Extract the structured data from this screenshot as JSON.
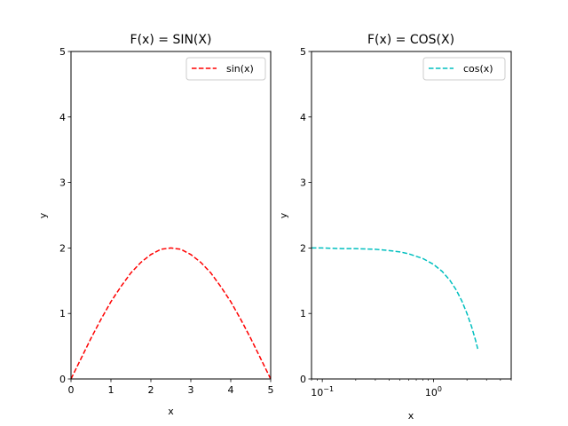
{
  "chart_data": [
    {
      "type": "line",
      "title": "F(x) = SIN(X)",
      "xlabel": "x",
      "ylabel": "y",
      "xscale": "linear",
      "xlim": [
        0,
        5
      ],
      "ylim": [
        0,
        5
      ],
      "xticks": [
        0,
        1,
        2,
        3,
        4,
        5
      ],
      "xtick_labels": [
        "0",
        "1",
        "2",
        "3",
        "4",
        "5"
      ],
      "yticks": [
        0,
        1,
        2,
        3,
        4,
        5
      ],
      "ytick_labels": [
        "0",
        "1",
        "2",
        "3",
        "4",
        "5"
      ],
      "legend_position": "top-right",
      "series": [
        {
          "name": "sin(x)",
          "color": "#ff0000",
          "line_style": "dashed",
          "x": [
            0,
            0.25,
            0.5,
            0.75,
            1.0,
            1.25,
            1.5,
            1.75,
            2.0,
            2.25,
            2.5,
            2.75,
            3.0,
            3.25,
            3.5,
            3.75,
            4.0,
            4.25,
            4.5,
            4.75,
            5.0
          ],
          "y": [
            0,
            0.31,
            0.62,
            0.91,
            1.18,
            1.41,
            1.62,
            1.78,
            1.9,
            1.98,
            2.0,
            1.98,
            1.9,
            1.78,
            1.62,
            1.41,
            1.18,
            0.91,
            0.62,
            0.31,
            0
          ]
        }
      ]
    },
    {
      "type": "line",
      "title": "F(x) = COS(X)",
      "xlabel": "x",
      "ylabel": "y",
      "xscale": "log",
      "xlim": [
        0.08,
        5
      ],
      "ylim": [
        0,
        5
      ],
      "xticks": [
        0.1,
        1
      ],
      "xtick_labels": [
        "10",
        "10"
      ],
      "xtick_exponents": [
        "−1",
        "0"
      ],
      "yticks": [
        0,
        1,
        2,
        3,
        4,
        5
      ],
      "ytick_labels": [
        "0",
        "1",
        "2",
        "3",
        "4",
        "5"
      ],
      "legend_position": "top-right",
      "series": [
        {
          "name": "cos(x)",
          "color": "#00bfbf",
          "line_style": "dashed",
          "x": [
            0.08,
            0.1,
            0.15,
            0.2,
            0.3,
            0.4,
            0.5,
            0.6,
            0.8,
            1.0,
            1.2,
            1.4,
            1.6,
            1.8,
            2.0,
            2.2,
            2.4,
            2.5
          ],
          "y": [
            2.0,
            2.0,
            1.99,
            1.99,
            1.98,
            1.96,
            1.94,
            1.91,
            1.84,
            1.75,
            1.64,
            1.51,
            1.36,
            1.19,
            1.0,
            0.8,
            0.58,
            0.46
          ]
        }
      ]
    }
  ]
}
